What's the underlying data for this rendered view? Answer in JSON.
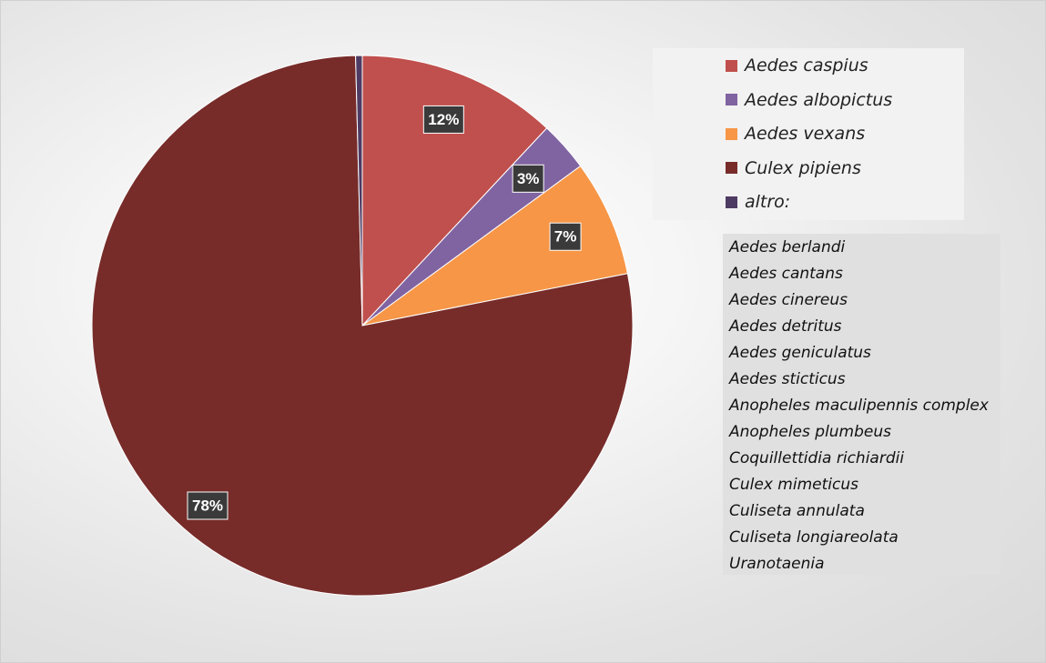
{
  "chart_data": {
    "type": "pie",
    "start_angle_deg": 0,
    "direction": "clockwise",
    "slices": [
      {
        "name": "Aedes caspius",
        "value": 12,
        "label": "12%",
        "color": "#C0504D"
      },
      {
        "name": "Aedes albopictus",
        "value": 3,
        "label": "3%",
        "color": "#8064A2"
      },
      {
        "name": "Aedes vexans",
        "value": 7,
        "label": "7%",
        "color": "#F79646"
      },
      {
        "name": "Culex pipiens",
        "value": 78,
        "label": "78%",
        "color": "#772C2A"
      },
      {
        "name": "altro:",
        "value": 0.4,
        "label": "",
        "color": "#4E3B63"
      }
    ],
    "legend": {
      "placement": "right",
      "entries": [
        "Aedes caspius",
        "Aedes albopictus",
        "Aedes vexans",
        "Culex pipiens",
        "altro:"
      ]
    },
    "other_species": [
      "Aedes berlandi",
      "Aedes cantans",
      "Aedes cinereus",
      "Aedes detritus",
      "Aedes geniculatus",
      "Aedes sticticus",
      "Anopheles maculipennis complex",
      "Anopheles plumbeus",
      "Coquillettidia richiardii",
      "Culex mimeticus",
      "Culiseta annulata",
      "Culiseta longiareolata",
      "Uranotaenia"
    ]
  }
}
